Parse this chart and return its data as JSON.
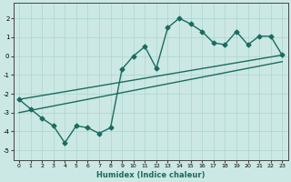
{
  "xlabel": "Humidex (Indice chaleur)",
  "ylabel": "",
  "xlim": [
    -0.5,
    23.5
  ],
  "ylim": [
    -5.5,
    2.8
  ],
  "yticks": [
    -5,
    -4,
    -3,
    -2,
    -1,
    0,
    1,
    2
  ],
  "xticks": [
    0,
    1,
    2,
    3,
    4,
    5,
    6,
    7,
    8,
    9,
    10,
    11,
    12,
    13,
    14,
    15,
    16,
    17,
    18,
    19,
    20,
    21,
    22,
    23
  ],
  "bg_color": "#cce8e4",
  "grid_color": "#aad4ce",
  "line_color": "#1a6b60",
  "line_width": 1.0,
  "marker": "D",
  "marker_size": 2.5,
  "curve1_x": [
    0,
    1,
    2,
    3,
    4,
    5,
    6,
    7,
    8,
    9,
    10,
    11,
    12,
    13,
    14,
    15,
    16,
    17,
    18,
    19,
    20,
    21,
    22,
    23
  ],
  "curve1_y": [
    -2.3,
    -2.8,
    -3.3,
    -3.7,
    -4.6,
    -3.7,
    -3.8,
    -4.1,
    -3.8,
    -0.7,
    0.0,
    0.5,
    -0.65,
    1.5,
    2.0,
    1.7,
    1.3,
    0.7,
    0.6,
    1.3,
    0.6,
    1.05,
    1.05,
    0.05
  ],
  "line1_x": [
    0,
    23
  ],
  "line1_y": [
    -2.3,
    0.05
  ],
  "line2_x": [
    0,
    23
  ],
  "line2_y": [
    -3.0,
    -0.3
  ]
}
